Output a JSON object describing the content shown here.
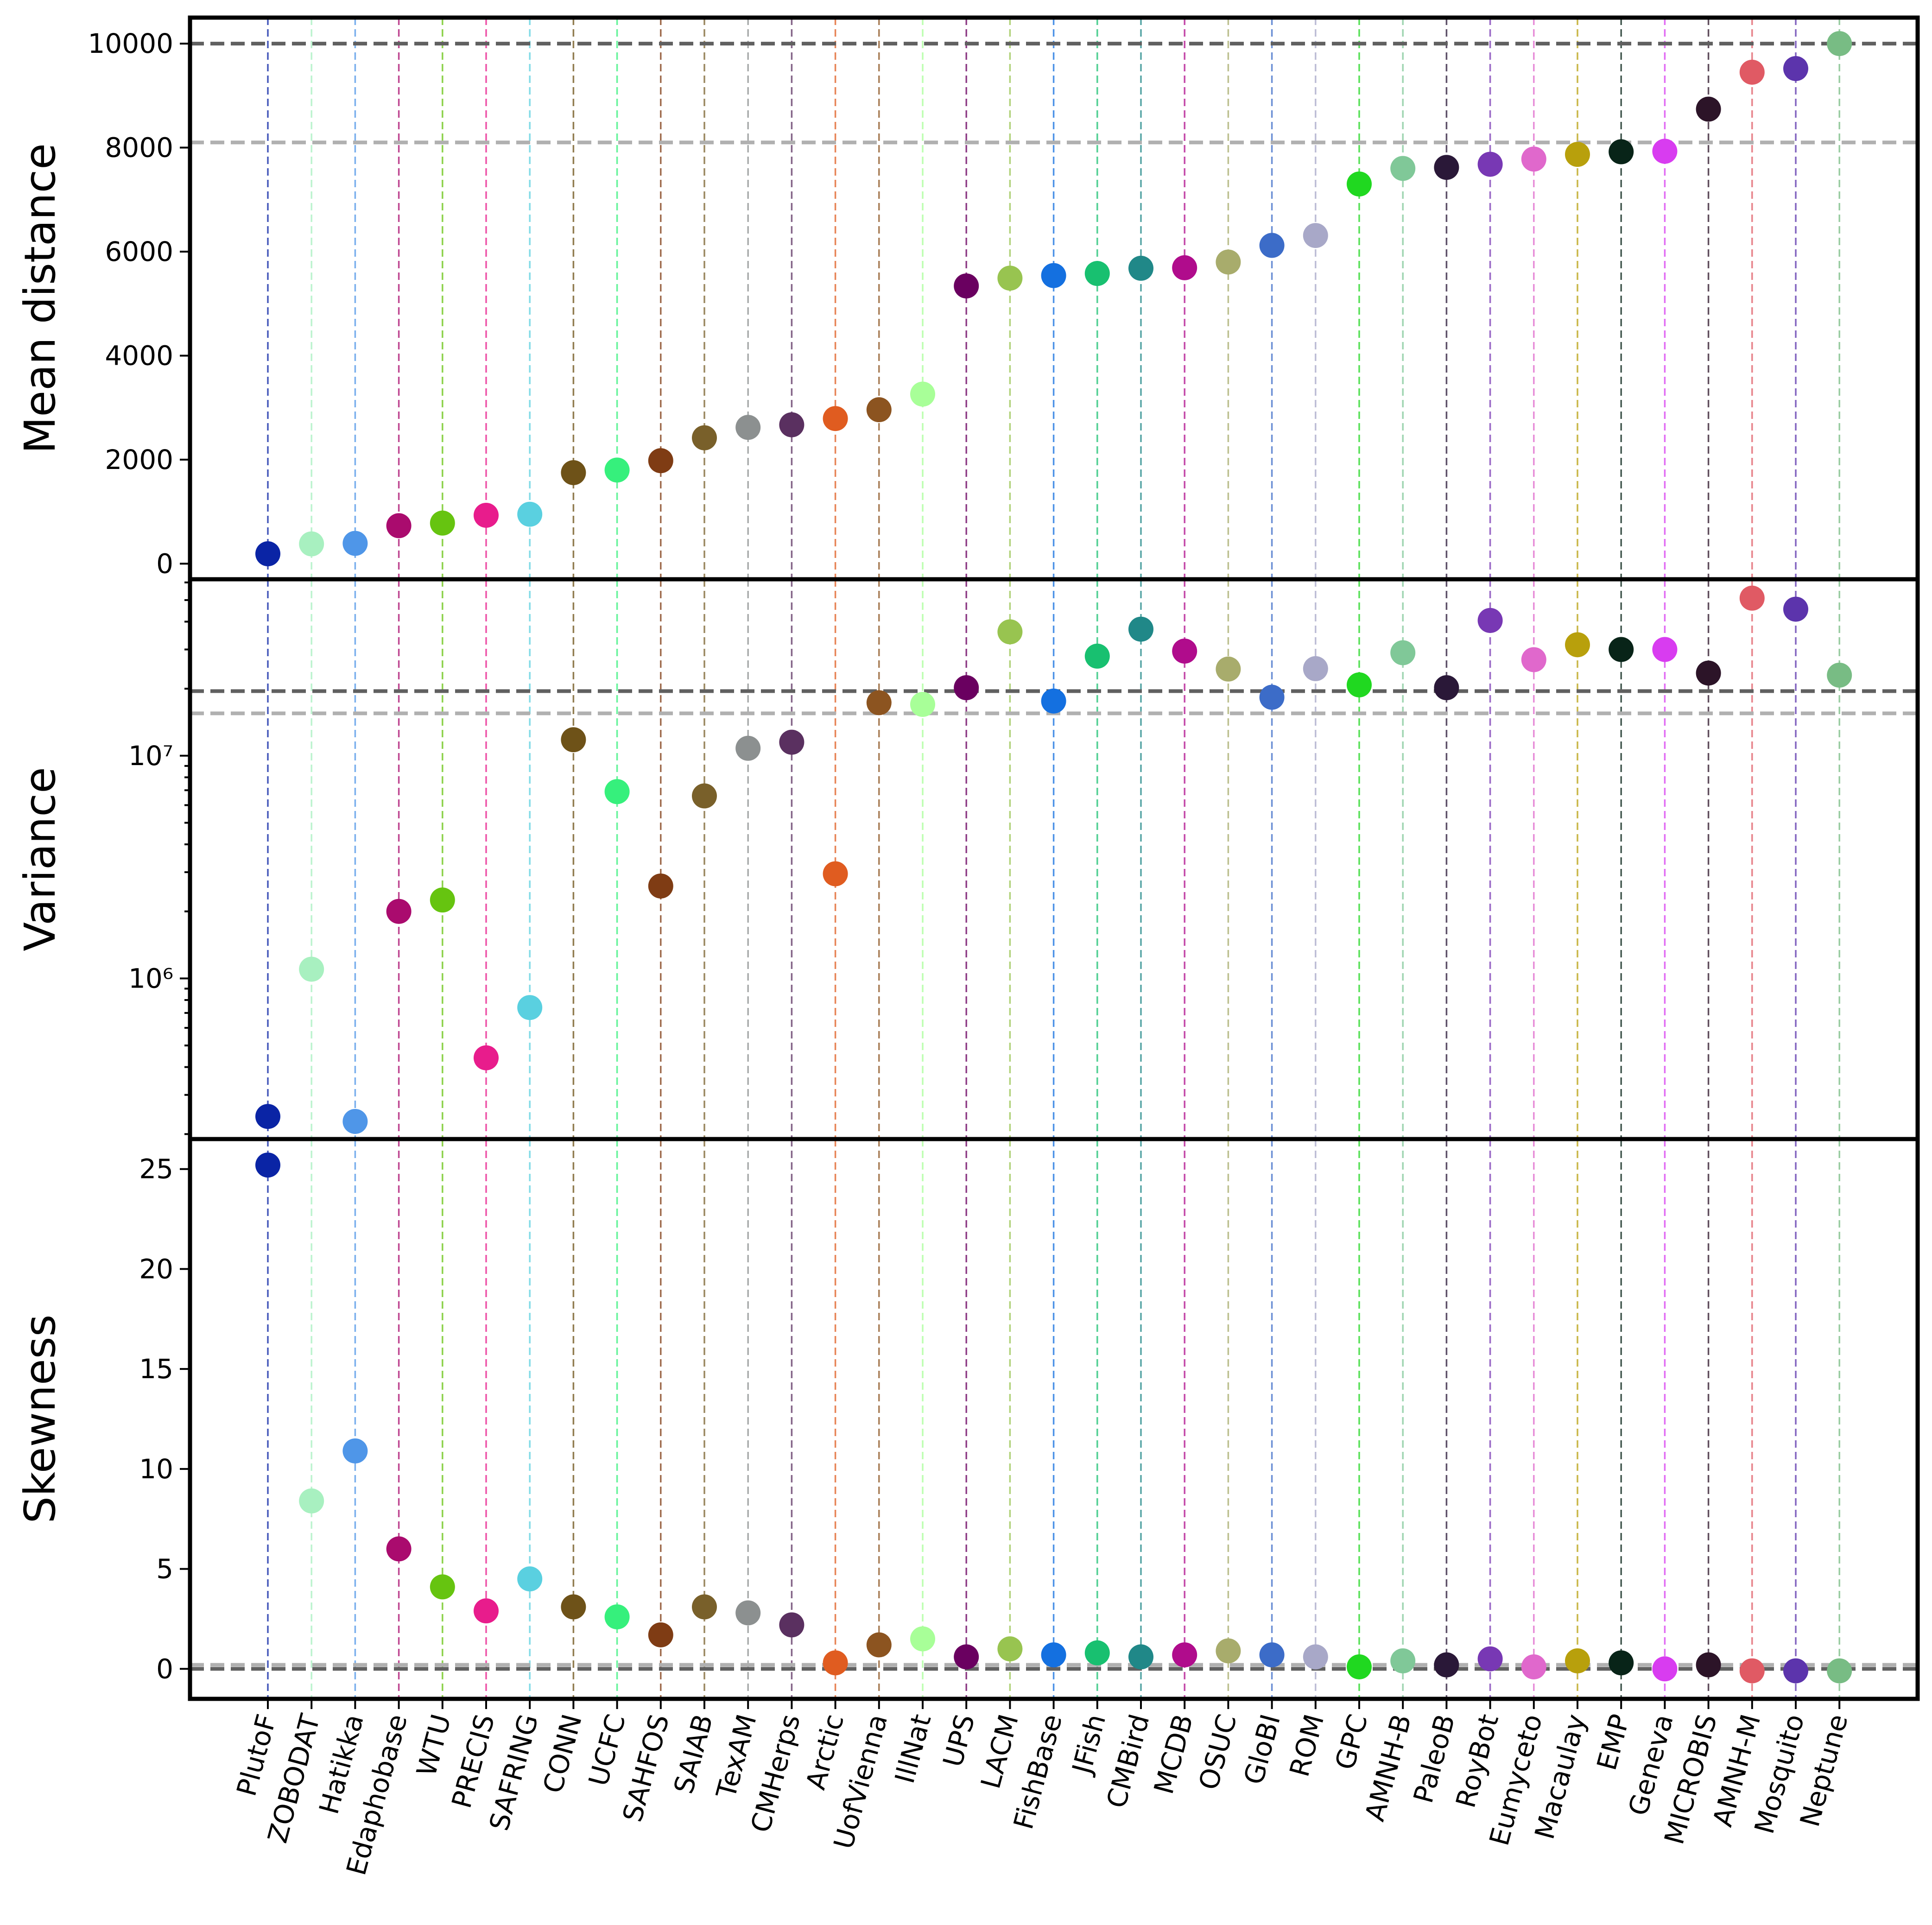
{
  "chart_data": {
    "type": "scatter",
    "categories": [
      "PlutoF",
      "ZOBODAT",
      "Hatikka",
      "Edaphobase",
      "WTU",
      "PRECIS",
      "SAFRING",
      "CONN",
      "UCFC",
      "SAHFOS",
      "SAIAB",
      "TexAM",
      "CMHerps",
      "Arctic",
      "UofVienna",
      "IllNat",
      "UPS",
      "LACM",
      "FishBase",
      "JFish",
      "CMBird",
      "MCDB",
      "OSUC",
      "GloBI",
      "ROM",
      "GPC",
      "AMNH-B",
      "PaleoB",
      "RoyBot",
      "Eumyceto",
      "Macaulay",
      "EMP",
      "Geneva",
      "MICROBIS",
      "AMNH-M",
      "Mosquito",
      "Neptune"
    ],
    "colors": [
      "#0a24a5",
      "#a8f0c0",
      "#4f96e8",
      "#aa0b6e",
      "#66c410",
      "#e81c8c",
      "#5ad0e0",
      "#6e5218",
      "#36f07c",
      "#7f3c14",
      "#79602a",
      "#8c9090",
      "#5a3060",
      "#e05c20",
      "#8c5420",
      "#a8ff98",
      "#6a0060",
      "#98c450",
      "#1470e0",
      "#18c070",
      "#208888",
      "#b00c8c",
      "#a8ac6c",
      "#3c6cc8",
      "#a8a8c8",
      "#20d820",
      "#80c898",
      "#2a1838",
      "#7838b4",
      "#e068cc",
      "#b8a00c",
      "#082418",
      "#d83cf0",
      "#2c1428",
      "#e05a64",
      "#5c34ac",
      "#78bc84"
    ],
    "panels": [
      {
        "ylabel": "Mean distance",
        "scale": "linear",
        "ylim": [
          -300,
          10500
        ],
        "yticks": [
          0,
          2000,
          4000,
          6000,
          8000,
          10000
        ],
        "ytick_labels": [
          "0",
          "2000",
          "4000",
          "6000",
          "8000",
          "10000"
        ],
        "hlines": [
          {
            "y": 10000,
            "color": "#606060"
          },
          {
            "y": 8100,
            "color": "#b0b0b0"
          }
        ],
        "values": [
          190,
          380,
          390,
          730,
          780,
          930,
          950,
          1750,
          1800,
          1980,
          2420,
          2620,
          2670,
          2790,
          2960,
          3260,
          5340,
          5490,
          5540,
          5580,
          5680,
          5690,
          5800,
          6120,
          6310,
          7300,
          7600,
          7620,
          7680,
          7780,
          7870,
          7920,
          7930,
          8740,
          9450,
          9520,
          10000
        ]
      },
      {
        "ylabel": "Variance",
        "scale": "log",
        "ylim": [
          190000,
          62000000
        ],
        "yticks": [
          1000000,
          10000000
        ],
        "ytick_labels": [
          "10⁶",
          "10⁷"
        ],
        "hlines": [
          {
            "y": 19500000,
            "color": "#606060"
          },
          {
            "y": 15500000,
            "color": "#b0b0b0"
          }
        ],
        "values": [
          240000,
          1100000,
          228000,
          2000000,
          2250000,
          440000,
          740000,
          11800000,
          6900000,
          2600000,
          6600000,
          10800000,
          11500000,
          2950000,
          17300000,
          17000000,
          20200000,
          36000000,
          17600000,
          28000000,
          37000000,
          29500000,
          24500000,
          18300000,
          24600000,
          20800000,
          29000000,
          20200000,
          40500000,
          27000000,
          31500000,
          30000000,
          30000000,
          23500000,
          51000000,
          45500000,
          23000000
        ]
      },
      {
        "ylabel": "Skewness",
        "scale": "linear",
        "ylim": [
          -1.5,
          26.5
        ],
        "yticks": [
          0,
          5,
          10,
          15,
          20,
          25
        ],
        "ytick_labels": [
          "0",
          "5",
          "10",
          "15",
          "20",
          "25"
        ],
        "hlines": [
          {
            "y": 0.2,
            "color": "#b0b0b0"
          },
          {
            "y": 0.0,
            "color": "#606060"
          }
        ],
        "values": [
          25.2,
          8.4,
          10.9,
          6.0,
          4.1,
          2.9,
          4.5,
          3.1,
          2.6,
          1.7,
          3.1,
          2.8,
          2.2,
          0.3,
          1.2,
          1.5,
          0.6,
          1.0,
          0.7,
          0.8,
          0.6,
          0.7,
          0.9,
          0.7,
          0.6,
          0.1,
          0.4,
          0.2,
          0.5,
          0.1,
          0.4,
          0.3,
          0.0,
          0.2,
          -0.1,
          -0.1,
          -0.1
        ]
      }
    ]
  }
}
